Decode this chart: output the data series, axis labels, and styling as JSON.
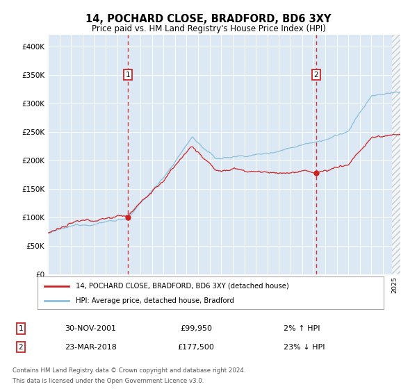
{
  "title": "14, POCHARD CLOSE, BRADFORD, BD6 3XY",
  "subtitle": "Price paid vs. HM Land Registry's House Price Index (HPI)",
  "plot_bg_color": "#dce9f5",
  "hpi_color": "#8bbfda",
  "price_color": "#cc2222",
  "sale1_date": "30-NOV-2001",
  "sale1_price": 99950,
  "sale1_hpi_pct": "2% ↑ HPI",
  "sale2_date": "23-MAR-2018",
  "sale2_price": 177500,
  "sale2_hpi_pct": "23% ↓ HPI",
  "sale1_year": 2001.92,
  "sale2_year": 2018.22,
  "legend_label1": "14, POCHARD CLOSE, BRADFORD, BD6 3XY (detached house)",
  "legend_label2": "HPI: Average price, detached house, Bradford",
  "footer": "Contains HM Land Registry data © Crown copyright and database right 2024.\nThis data is licensed under the Open Government Licence v3.0.",
  "ylim": [
    0,
    420000
  ],
  "xlim_start": 1995.0,
  "xlim_end": 2025.5
}
